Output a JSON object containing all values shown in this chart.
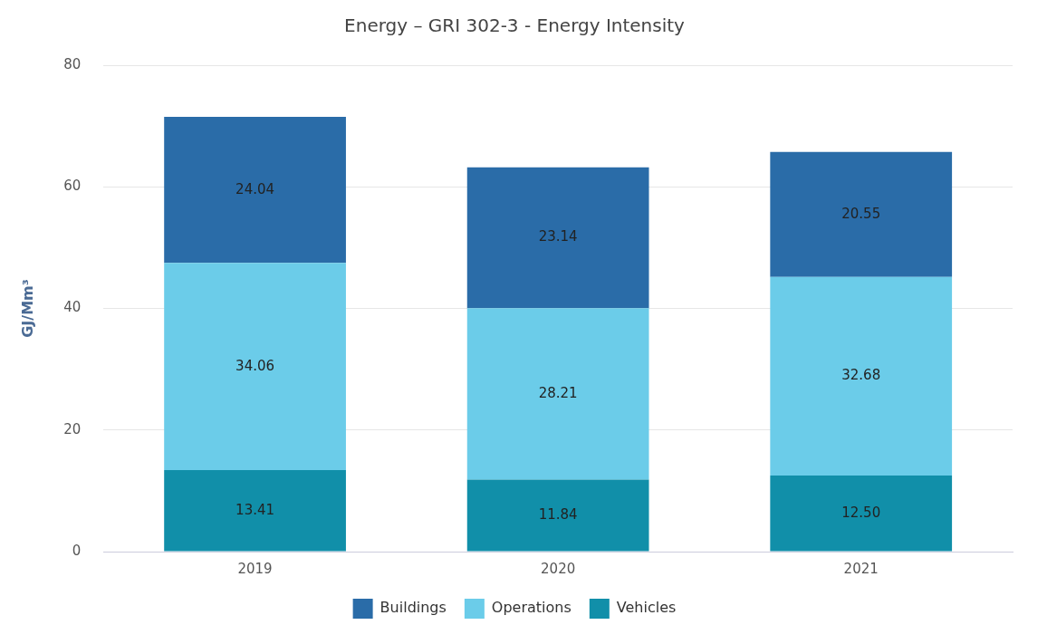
{
  "chart_data": {
    "type": "bar",
    "title": "Energy – GRI 302-3 - Energy Intensity",
    "ylabel": "GJ/Mm³",
    "categories": [
      "2019",
      "2020",
      "2021"
    ],
    "stacked": true,
    "series": [
      {
        "name": "Vehicles",
        "color": "#118fa9",
        "values": [
          13.41,
          11.84,
          12.5
        ],
        "value_labels": [
          "13.41",
          "11.84",
          "12.50"
        ]
      },
      {
        "name": "Operations",
        "color": "#6bcce9",
        "values": [
          34.06,
          28.21,
          32.68
        ],
        "value_labels": [
          "34.06",
          "28.21",
          "32.68"
        ]
      },
      {
        "name": "Buildings",
        "color": "#2a6ca8",
        "values": [
          24.04,
          23.14,
          20.55
        ],
        "value_labels": [
          "24.04",
          "23.14",
          "20.55"
        ]
      }
    ],
    "ylim": [
      0,
      80
    ],
    "yticks": [
      0,
      20,
      40,
      60,
      80
    ],
    "grid": "y",
    "legend": "bottom"
  }
}
